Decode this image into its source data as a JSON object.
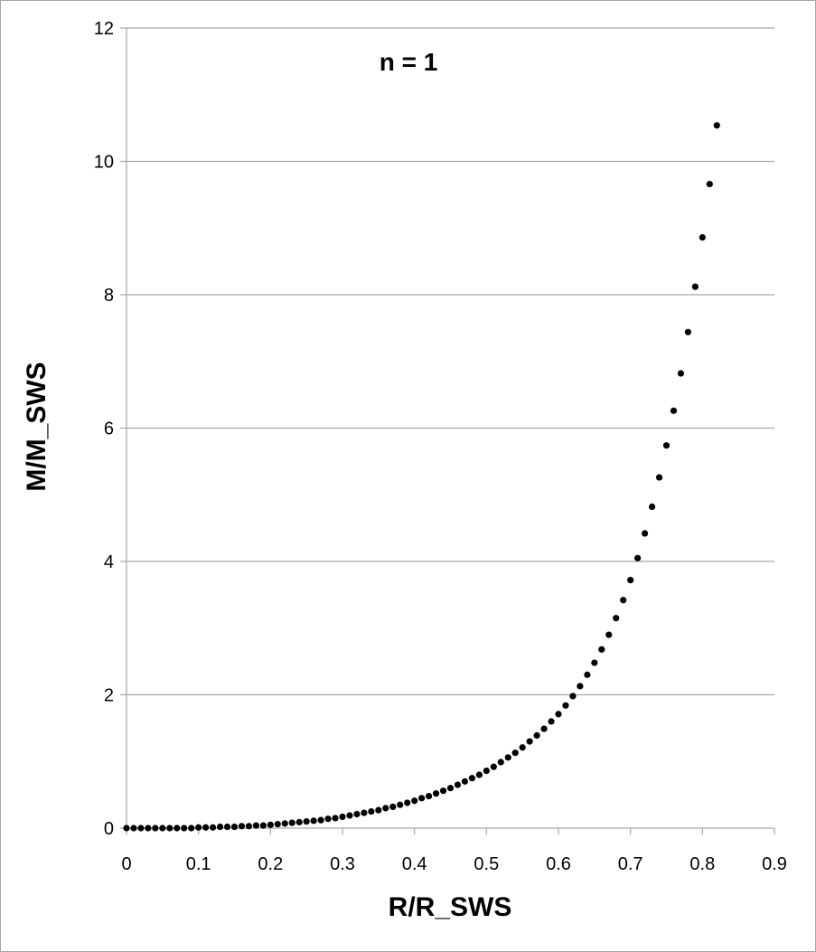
{
  "chart_data": {
    "type": "scatter",
    "title": "",
    "annotation": "n = 1",
    "xlabel": "R/R_SWS",
    "ylabel": "M/M_SWS",
    "xlim": [
      0,
      0.9
    ],
    "ylim": [
      0,
      12
    ],
    "xticks": [
      0,
      0.1,
      0.2,
      0.3,
      0.4,
      0.5,
      0.6,
      0.7,
      0.8,
      0.9
    ],
    "xtick_labels": [
      "0",
      "0.1",
      "0.2",
      "0.3",
      "0.4",
      "0.5",
      "0.6",
      "0.7",
      "0.8",
      "0.9"
    ],
    "yticks": [
      0,
      2,
      4,
      6,
      8,
      10,
      12
    ],
    "ytick_labels": [
      "0",
      "2",
      "4",
      "6",
      "8",
      "10",
      "12"
    ],
    "grid": "horizontal",
    "marker_color": "#000000",
    "grid_color": "#a6a6a6",
    "series": [
      {
        "x": [
          0,
          0.01,
          0.02,
          0.03,
          0.04,
          0.05,
          0.06,
          0.07,
          0.08,
          0.09,
          0.1,
          0.11,
          0.12,
          0.13,
          0.14,
          0.15,
          0.16,
          0.17,
          0.18,
          0.19,
          0.2,
          0.21,
          0.22,
          0.23,
          0.24,
          0.25,
          0.26,
          0.27,
          0.28,
          0.29,
          0.3,
          0.31,
          0.32,
          0.33,
          0.34,
          0.35,
          0.36,
          0.37,
          0.38,
          0.39,
          0.4,
          0.41,
          0.42,
          0.43,
          0.44,
          0.45,
          0.46,
          0.47,
          0.48,
          0.49,
          0.5,
          0.51,
          0.52,
          0.53,
          0.54,
          0.55,
          0.56,
          0.57,
          0.58,
          0.59,
          0.6,
          0.61,
          0.62,
          0.63,
          0.64,
          0.65,
          0.66,
          0.67,
          0.68,
          0.69,
          0.7,
          0.71,
          0.72,
          0.73,
          0.74,
          0.75,
          0.76,
          0.77,
          0.78,
          0.79,
          0.8,
          0.81,
          0.82
        ],
        "y": [
          0,
          0,
          0,
          0,
          0,
          0,
          0,
          0,
          0,
          0,
          0.01,
          0.01,
          0.01,
          0.02,
          0.02,
          0.02,
          0.03,
          0.03,
          0.04,
          0.04,
          0.05,
          0.06,
          0.07,
          0.08,
          0.09,
          0.1,
          0.11,
          0.12,
          0.14,
          0.15,
          0.17,
          0.19,
          0.21,
          0.23,
          0.25,
          0.27,
          0.3,
          0.32,
          0.35,
          0.38,
          0.41,
          0.45,
          0.48,
          0.52,
          0.56,
          0.6,
          0.65,
          0.7,
          0.75,
          0.8,
          0.86,
          0.92,
          0.99,
          1.06,
          1.13,
          1.21,
          1.3,
          1.39,
          1.49,
          1.6,
          1.71,
          1.84,
          1.98,
          2.13,
          2.3,
          2.48,
          2.68,
          2.9,
          3.15,
          3.42,
          3.72,
          4.05,
          4.42,
          4.82,
          5.26,
          5.74,
          6.26,
          6.82,
          7.44,
          8.12,
          8.86,
          9.66,
          10.54
        ]
      }
    ]
  }
}
